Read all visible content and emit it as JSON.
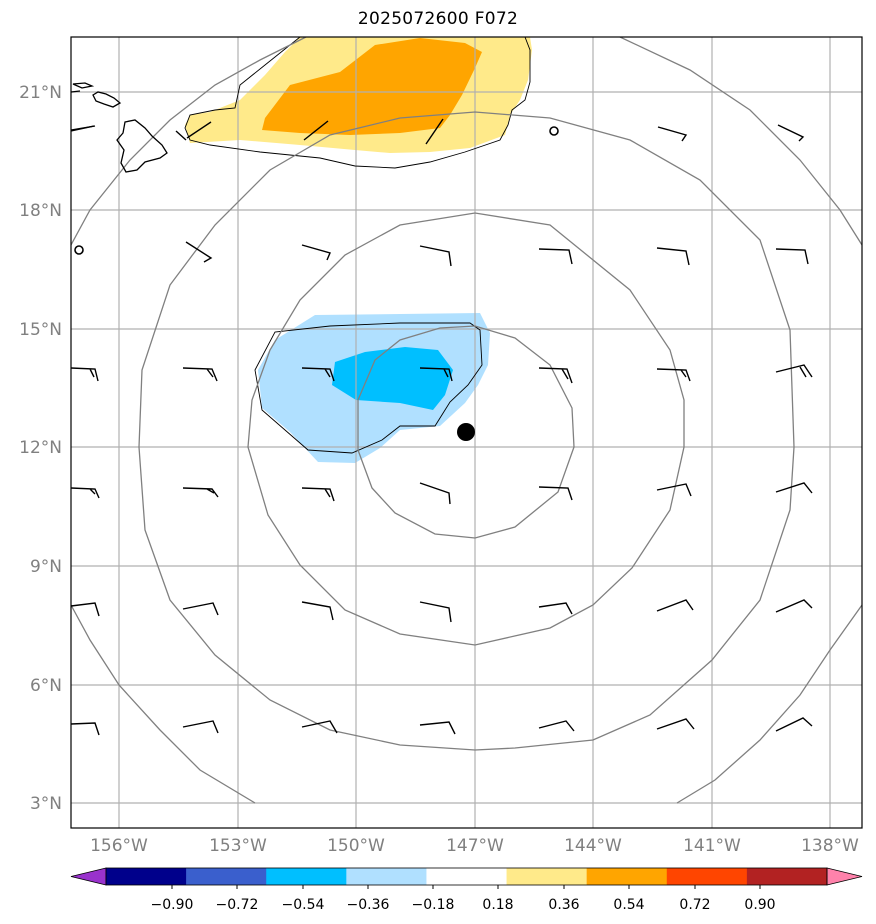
{
  "title": "2025072600 F072",
  "map": {
    "lon_range": [
      -157.2,
      -137.4
    ],
    "lat_range": [
      2.5,
      22.4
    ],
    "lat_ticks": [
      "3°N",
      "6°N",
      "9°N",
      "12°N",
      "15°N",
      "18°N",
      "21°N"
    ],
    "lon_ticks": [
      "156°W",
      "153°W",
      "150°W",
      "147°W",
      "144°W",
      "141°W",
      "138°W"
    ],
    "center_marker": {
      "lon": -147.2,
      "lat": 12.4
    },
    "colors": {
      "gridline": "#b0b0b0",
      "contour": "#808080",
      "coast": "#000000",
      "positive_1": "#ffea8a",
      "positive_2": "#ffa500",
      "negative_1": "#b0e0ff",
      "negative_2": "#00bfff"
    }
  },
  "colorbar": {
    "labels": [
      "−0.90",
      "−0.72",
      "−0.54",
      "−0.36",
      "−0.18",
      "0.18",
      "0.36",
      "0.54",
      "0.72",
      "0.90"
    ],
    "colors": [
      "#9932cc",
      "#00008b",
      "#3a5fcd",
      "#00bfff",
      "#b0e0ff",
      "#ffffff",
      "#ffea8a",
      "#ffa500",
      "#ff4500",
      "#b22222",
      "#ff82ab"
    ]
  }
}
